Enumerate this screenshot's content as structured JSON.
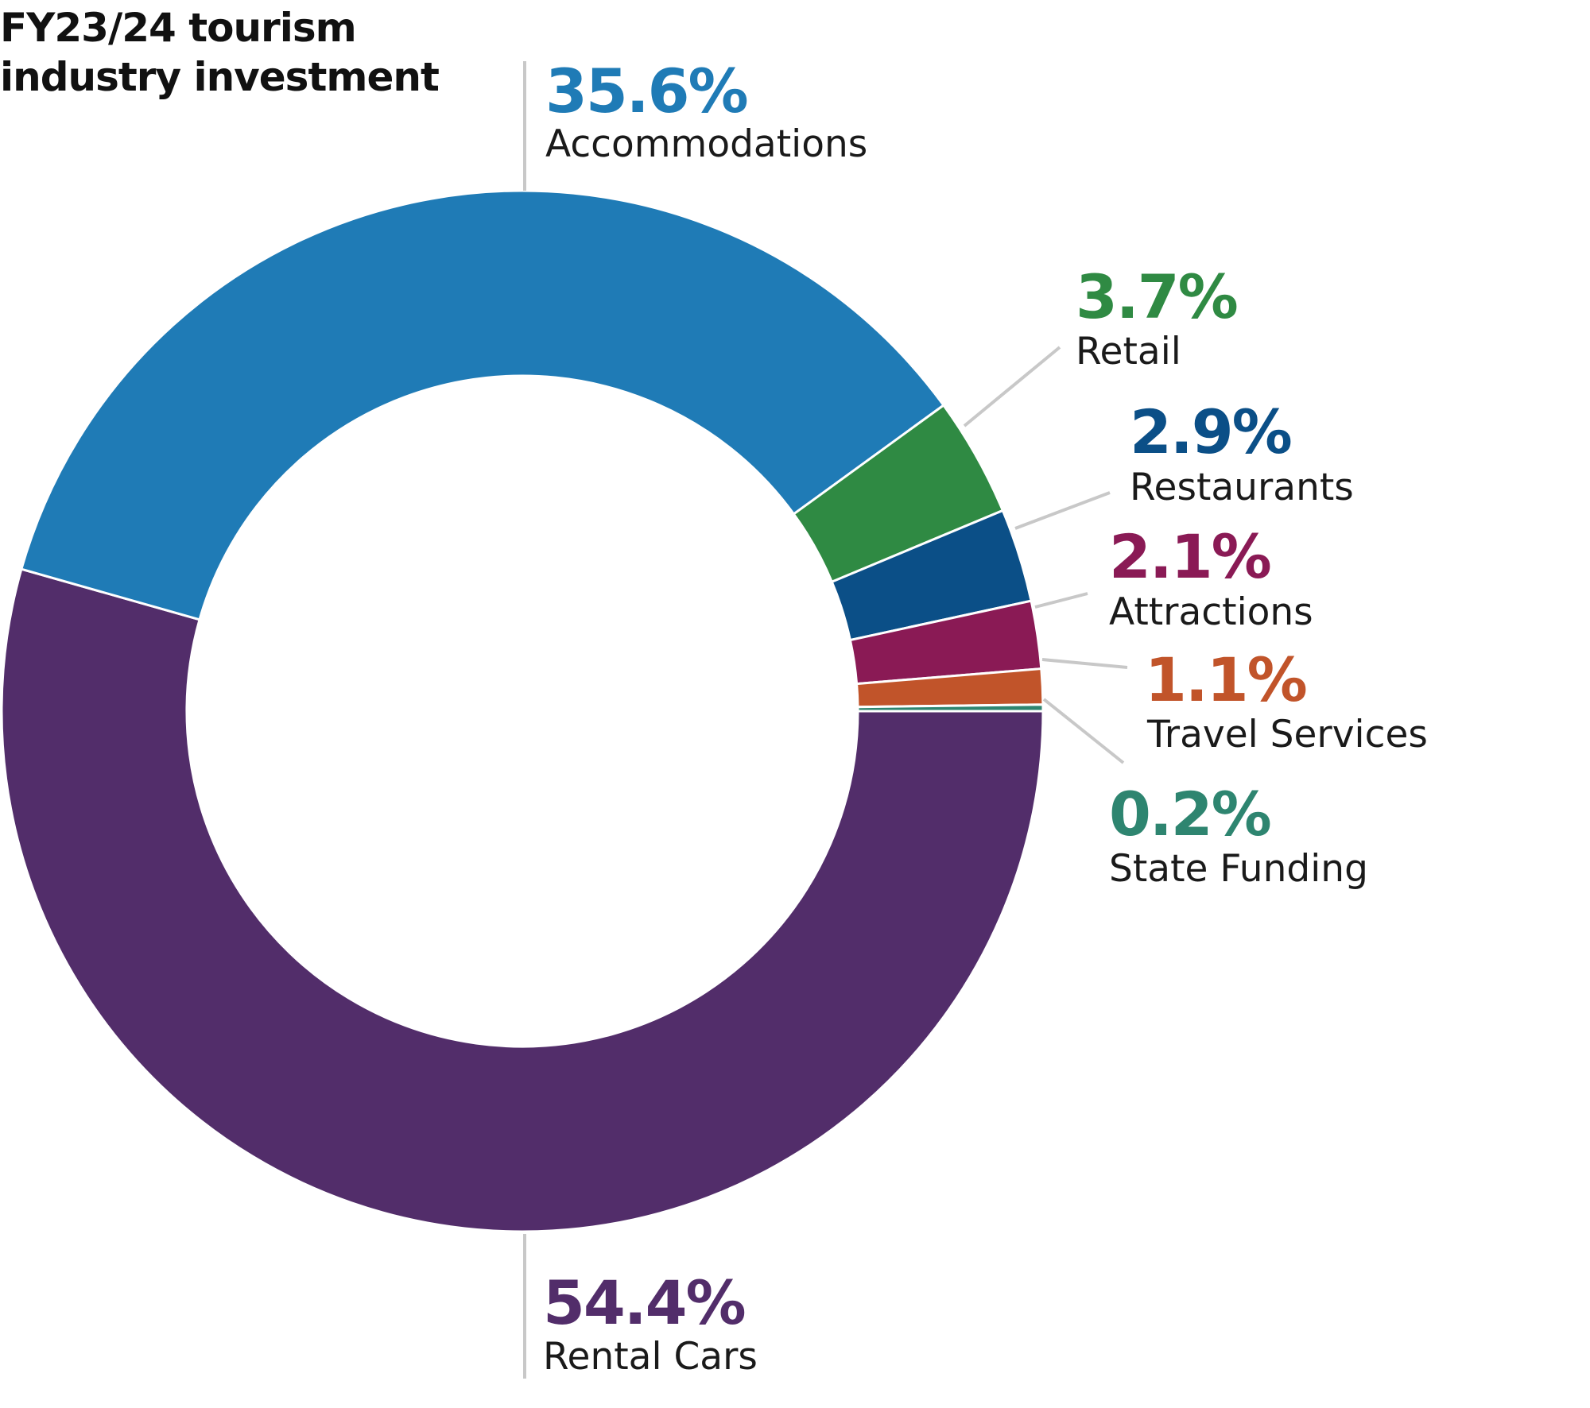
{
  "chart_data": {
    "type": "pie",
    "style": "donut",
    "title_lines": [
      "FY23/24 tourism",
      "industry investment"
    ],
    "slices": [
      {
        "category": "Accommodations",
        "value": 35.6,
        "label": "35.6%",
        "color": "#1f7bb6"
      },
      {
        "category": "Retail",
        "value": 3.7,
        "label": "3.7%",
        "color": "#2f8a43"
      },
      {
        "category": "Restaurants",
        "value": 2.9,
        "label": "2.9%",
        "color": "#0b4f87"
      },
      {
        "category": "Attractions",
        "value": 2.1,
        "label": "2.1%",
        "color": "#8a1a55"
      },
      {
        "category": "Travel Services",
        "value": 1.1,
        "label": "1.1%",
        "color": "#c1542a"
      },
      {
        "category": "State Funding",
        "value": 0.2,
        "label": "0.2%",
        "color": "#2e8570"
      },
      {
        "category": "Rental Cars",
        "value": 54.4,
        "label": "54.4%",
        "color": "#522d6a"
      }
    ],
    "order_note": "clockwise starting at 3 o'clock: Rental Cars, Accommodations, Retail, Restaurants, Attractions, Travel Services, State Funding",
    "legend": "none",
    "label_color": "#1a1a1a",
    "leader_line_color": "#c8c8c8"
  }
}
